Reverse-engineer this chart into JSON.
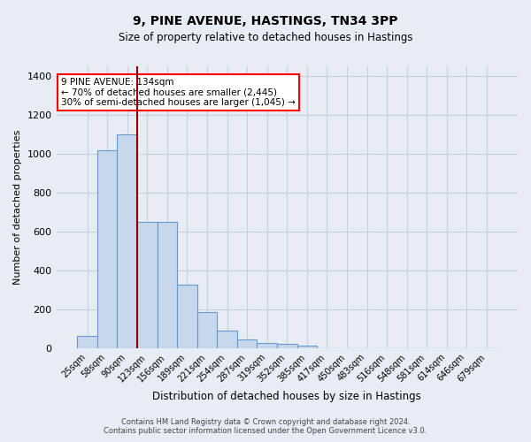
{
  "title1": "9, PINE AVENUE, HASTINGS, TN34 3PP",
  "title2": "Size of property relative to detached houses in Hastings",
  "xlabel": "Distribution of detached houses by size in Hastings",
  "ylabel": "Number of detached properties",
  "footnote1": "Contains HM Land Registry data © Crown copyright and database right 2024.",
  "footnote2": "Contains public sector information licensed under the Open Government Licence v3.0.",
  "annotation_line1": "9 PINE AVENUE: 134sqm",
  "annotation_line2": "← 70% of detached houses are smaller (2,445)",
  "annotation_line3": "30% of semi-detached houses are larger (1,045) →",
  "bar_categories": [
    "25sqm",
    "58sqm",
    "90sqm",
    "123sqm",
    "156sqm",
    "189sqm",
    "221sqm",
    "254sqm",
    "287sqm",
    "319sqm",
    "352sqm",
    "385sqm",
    "417sqm",
    "450sqm",
    "483sqm",
    "516sqm",
    "548sqm",
    "581sqm",
    "614sqm",
    "646sqm",
    "679sqm"
  ],
  "bar_values": [
    62,
    1020,
    1100,
    652,
    650,
    325,
    188,
    90,
    46,
    28,
    23,
    14,
    0,
    0,
    0,
    0,
    0,
    0,
    0,
    0,
    0
  ],
  "bar_color": "#c8d8ec",
  "bar_edge_color": "#6699cc",
  "vline_x_idx": 2.5,
  "vline_color": "#8b0000",
  "ylim": [
    0,
    1450
  ],
  "yticks": [
    0,
    200,
    400,
    600,
    800,
    1000,
    1200,
    1400
  ],
  "background_color": "#e8edf5",
  "plot_background": "#e8edf5",
  "grid_color": "#c8d0de"
}
